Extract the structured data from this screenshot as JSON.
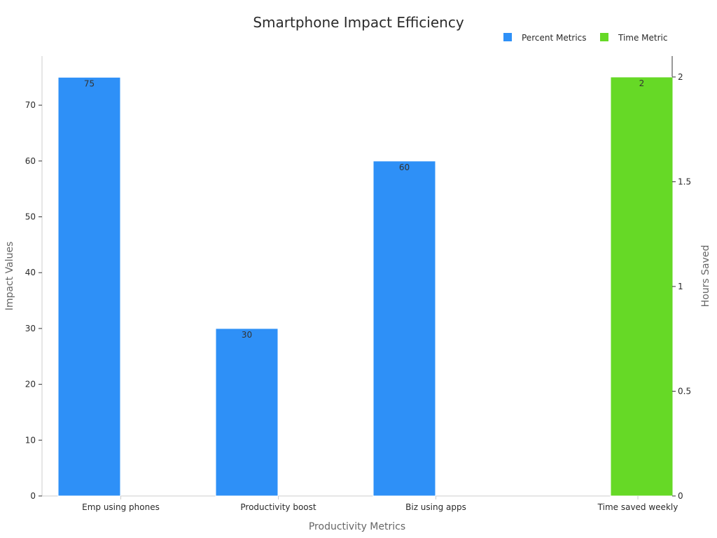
{
  "chart_data": {
    "type": "bar",
    "title": "Smartphone Impact Efficiency",
    "xlabel": "Productivity Metrics",
    "ylabel": "Impact Values",
    "y2label": "Hours Saved",
    "categories": [
      "Emp using phones",
      "Productivity boost",
      "Biz using apps",
      "Time saved weekly"
    ],
    "series": [
      {
        "name": "Percent Metrics",
        "axis": "left",
        "color": "#2e90f7",
        "values": [
          75,
          30,
          60,
          null
        ],
        "labels": [
          "75",
          "30",
          "60",
          null
        ]
      },
      {
        "name": "Time Metric",
        "axis": "right",
        "color": "#66d926",
        "values": [
          null,
          null,
          null,
          2
        ],
        "labels": [
          null,
          null,
          null,
          "2"
        ]
      }
    ],
    "ylim": [
      0,
      78.8
    ],
    "y2lim": [
      0,
      2.1
    ],
    "yticks": [
      "0",
      "10",
      "20",
      "30",
      "40",
      "50",
      "60",
      "70"
    ],
    "y2ticks": [
      "0",
      "0.5",
      "1",
      "1.5",
      "2"
    ],
    "legend_position": "top-right",
    "grid": false
  }
}
